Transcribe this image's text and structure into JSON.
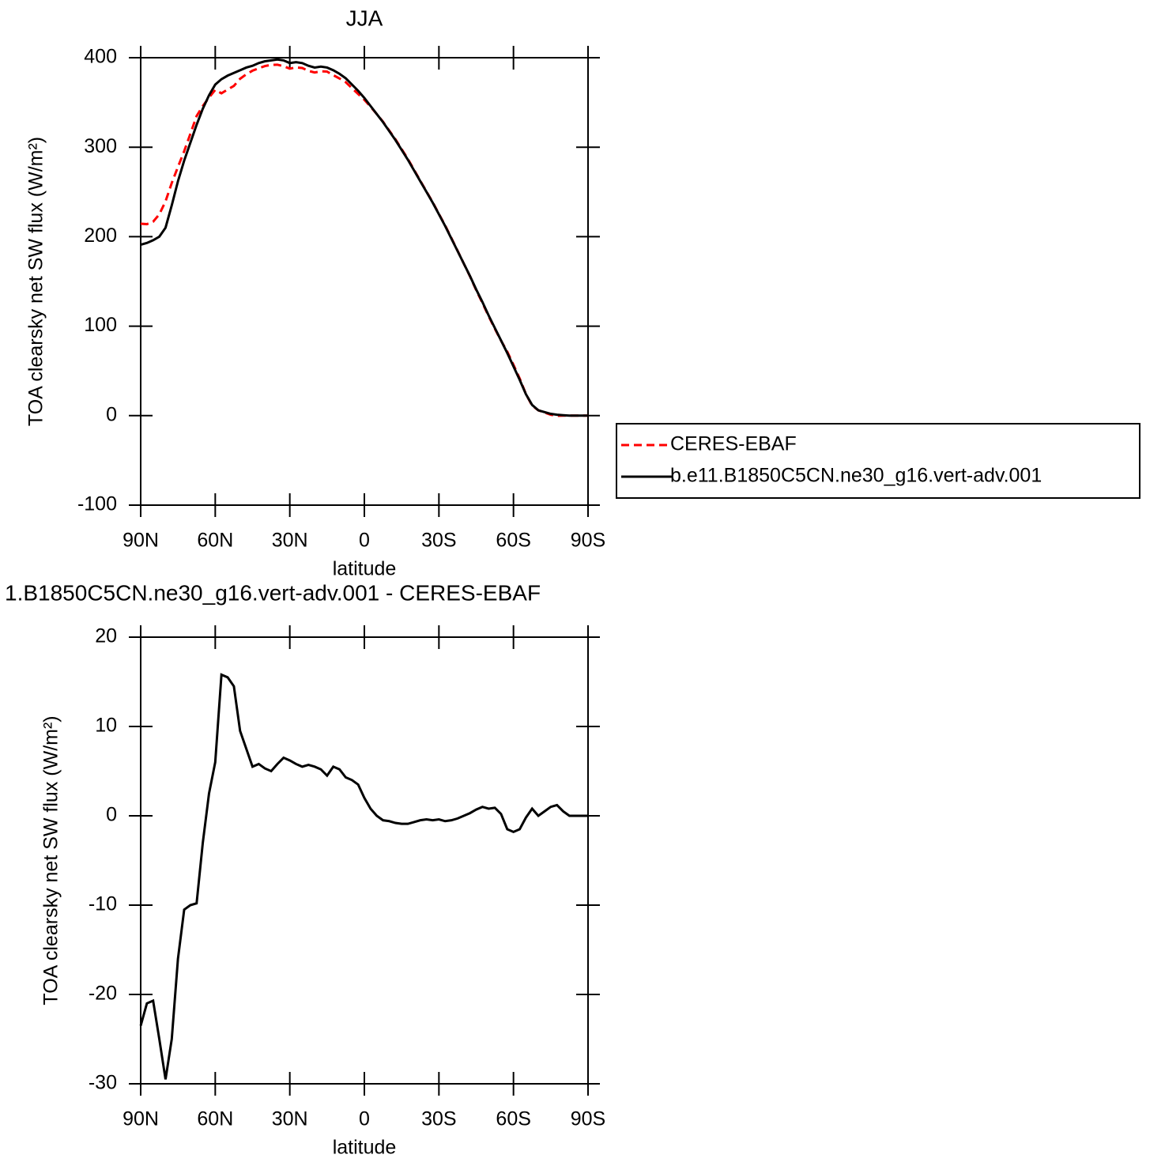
{
  "chart_data": [
    {
      "type": "line",
      "title": "JJA",
      "xlabel": "latitude",
      "ylabel": "TOA clearsky net SW flux (W/m²)",
      "xlim": [
        90,
        -90
      ],
      "ylim": [
        -100,
        400
      ],
      "xticks": [
        {
          "value": 90,
          "label": "90N"
        },
        {
          "value": 60,
          "label": "60N"
        },
        {
          "value": 30,
          "label": "30N"
        },
        0,
        {
          "value": -30,
          "label": "30S"
        },
        {
          "value": -60,
          "label": "60S"
        },
        {
          "value": -90,
          "label": "90S"
        }
      ],
      "yticks": [
        -100,
        0,
        100,
        200,
        300,
        400
      ],
      "legend": "right",
      "x": [
        90,
        87.5,
        85,
        82.5,
        80,
        77.5,
        75,
        72.5,
        70,
        67.5,
        65,
        62.5,
        60,
        57.5,
        55,
        52.5,
        50,
        47.5,
        45,
        42.5,
        40,
        37.5,
        35,
        32.5,
        30,
        27.5,
        25,
        22.5,
        20,
        17.5,
        15,
        12.5,
        10,
        7.5,
        5,
        2.5,
        0,
        -2.5,
        -5,
        -7.5,
        -10,
        -12.5,
        -15,
        -17.5,
        -20,
        -22.5,
        -25,
        -27.5,
        -30,
        -32.5,
        -35,
        -37.5,
        -40,
        -42.5,
        -45,
        -47.5,
        -50,
        -52.5,
        -55,
        -57.5,
        -60,
        -62.5,
        -65,
        -67.5,
        -70,
        -72.5,
        -75,
        -77.5,
        -80,
        -82.5,
        -85,
        -87.5,
        -90
      ],
      "series": [
        {
          "name": "CERES-EBAF",
          "color": "#ff0000",
          "line_style": "dashed",
          "values": [
            214.5,
            214,
            216.7,
            225,
            239.5,
            260,
            278,
            295.5,
            315,
            334.8,
            346,
            355.5,
            364,
            360.2,
            364.5,
            368.5,
            376.5,
            381.5,
            385.5,
            388.2,
            390.7,
            392,
            392.2,
            390.5,
            387.8,
            389.2,
            388.5,
            385.3,
            383.5,
            384.8,
            384.5,
            380.5,
            376.8,
            372.7,
            366,
            359.5,
            353,
            345.2,
            337,
            328.5,
            318.6,
            308.8,
            297.9,
            286.9,
            274.7,
            262.5,
            250.4,
            238.5,
            225.4,
            212.6,
            198.5,
            184.3,
            170,
            155.7,
            140.3,
            126,
            111.2,
            97.1,
            83.8,
            71.5,
            56.8,
            41.5,
            24.2,
            11.2,
            6,
            3.5,
            1,
            -0.2,
            0,
            0,
            0,
            0,
            0
          ]
        },
        {
          "name": "b.e11.B1850C5CN.ne30_g16.vert-adv.001",
          "color": "#000000",
          "line_style": "solid",
          "values": [
            191,
            193,
            196,
            200,
            210,
            235,
            262,
            285,
            305,
            325,
            343,
            358,
            370,
            376,
            380,
            383,
            386,
            389,
            391,
            394,
            396,
            397,
            398,
            397,
            394,
            395,
            394,
            391,
            389,
            390,
            389,
            386,
            382,
            377,
            370,
            363,
            355,
            346,
            337,
            328,
            318,
            308,
            297,
            286,
            274,
            262,
            250,
            238,
            225,
            212,
            198,
            184,
            170,
            156,
            141,
            127,
            112,
            98,
            84,
            70,
            55,
            40,
            24,
            12,
            6,
            4,
            2,
            1,
            0.5,
            0,
            0,
            0,
            0
          ]
        }
      ]
    },
    {
      "type": "line",
      "title": "1.B1850C5CN.ne30_g16.vert-adv.001 - CERES-EBAF",
      "xlabel": "latitude",
      "ylabel": "TOA clearsky net SW flux (W/m²)",
      "xlim": [
        90,
        -90
      ],
      "ylim": [
        -30,
        20
      ],
      "xticks": [
        {
          "value": 90,
          "label": "90N"
        },
        {
          "value": 60,
          "label": "60N"
        },
        {
          "value": 30,
          "label": "30N"
        },
        0,
        {
          "value": -30,
          "label": "30S"
        },
        {
          "value": -60,
          "label": "60S"
        },
        {
          "value": -90,
          "label": "90S"
        }
      ],
      "yticks": [
        -30,
        -20,
        -10,
        0,
        10,
        20
      ],
      "x": [
        90,
        87.5,
        85,
        82.5,
        80,
        77.5,
        75,
        72.5,
        70,
        67.5,
        65,
        62.5,
        60,
        57.5,
        55,
        52.5,
        50,
        47.5,
        45,
        42.5,
        40,
        37.5,
        35,
        32.5,
        30,
        27.5,
        25,
        22.5,
        20,
        17.5,
        15,
        12.5,
        10,
        7.5,
        5,
        2.5,
        0,
        -2.5,
        -5,
        -7.5,
        -10,
        -12.5,
        -15,
        -17.5,
        -20,
        -22.5,
        -25,
        -27.5,
        -30,
        -32.5,
        -35,
        -37.5,
        -40,
        -42.5,
        -45,
        -47.5,
        -50,
        -52.5,
        -55,
        -57.5,
        -60,
        -62.5,
        -65,
        -67.5,
        -70,
        -72.5,
        -75,
        -77.5,
        -80,
        -82.5,
        -85,
        -87.5,
        -90
      ],
      "series": [
        {
          "color": "#000000",
          "line_style": "solid",
          "values": [
            -23.5,
            -21,
            -20.7,
            -25,
            -29.5,
            -25,
            -16,
            -10.5,
            -10,
            -9.8,
            -3,
            2.5,
            6,
            15.8,
            15.5,
            14.5,
            9.5,
            7.5,
            5.5,
            5.8,
            5.3,
            5,
            5.8,
            6.5,
            6.2,
            5.8,
            5.5,
            5.7,
            5.5,
            5.2,
            4.5,
            5.5,
            5.2,
            4.3,
            4,
            3.5,
            2,
            0.8,
            0,
            -0.5,
            -0.6,
            -0.8,
            -0.9,
            -0.9,
            -0.7,
            -0.5,
            -0.4,
            -0.5,
            -0.4,
            -0.6,
            -0.5,
            -0.3,
            0,
            0.3,
            0.7,
            1,
            0.8,
            0.9,
            0.2,
            -1.5,
            -1.8,
            -1.5,
            -0.2,
            0.8,
            0,
            0.5,
            1,
            1.2,
            0.5,
            0,
            0,
            0,
            0
          ]
        }
      ]
    }
  ]
}
